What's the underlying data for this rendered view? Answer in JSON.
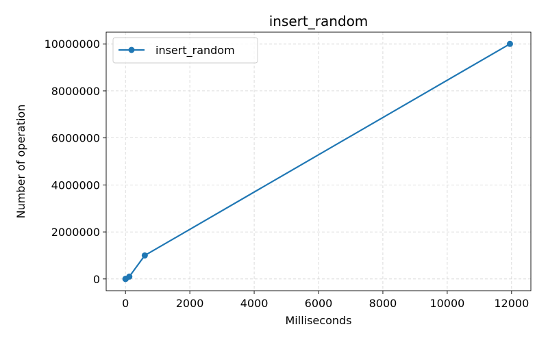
{
  "chart_data": {
    "type": "line",
    "title": "insert_random",
    "xlabel": "Milliseconds",
    "ylabel": "Number of operation",
    "xlim": [
      -600,
      12600
    ],
    "ylim": [
      -500000,
      10500000
    ],
    "xticks": [
      0,
      2000,
      4000,
      6000,
      8000,
      10000,
      12000
    ],
    "yticks": [
      0,
      2000000,
      4000000,
      6000000,
      8000000,
      10000000
    ],
    "grid": true,
    "legend": "upper left",
    "series": [
      {
        "name": "insert_random",
        "color": "#1f77b4",
        "marker": "circle",
        "x": [
          0,
          2,
          12,
          120,
          600,
          11950
        ],
        "y": [
          10,
          100,
          10000,
          100000,
          1000000,
          10000000
        ]
      }
    ]
  }
}
